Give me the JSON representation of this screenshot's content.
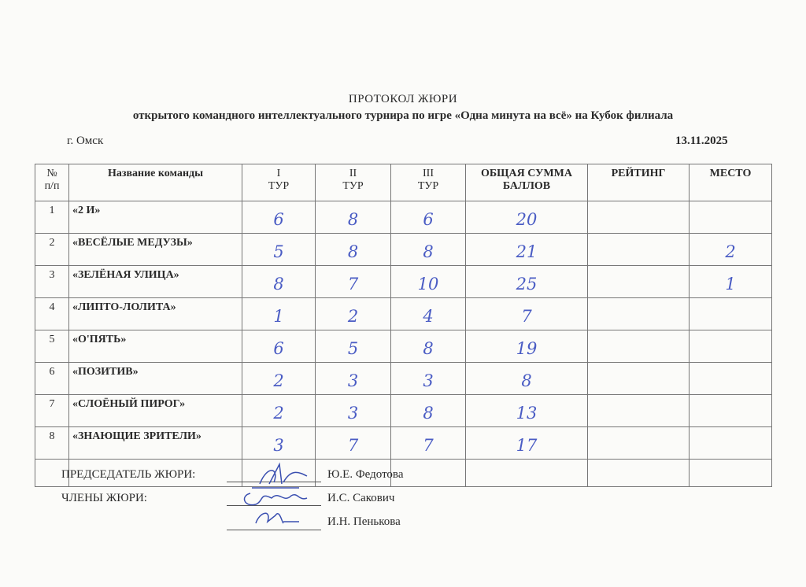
{
  "header": {
    "title": "ПРОТОКОЛ  ЖЮРИ",
    "subtitle": "открытого командного интеллектуального турнира по игре «Одна минута на всё» на Кубок филиала",
    "city": "г. Омск",
    "date": "13.11.2025"
  },
  "table": {
    "columns": [
      {
        "line1": "№",
        "line2": "п/п"
      },
      {
        "line1": "Название команды",
        "line2": ""
      },
      {
        "line1": "I",
        "line2": "ТУР"
      },
      {
        "line1": "II",
        "line2": "ТУР"
      },
      {
        "line1": "III",
        "line2": "ТУР"
      },
      {
        "line1": "ОБЩАЯ СУММА",
        "line2": "БАЛЛОВ"
      },
      {
        "line1": "РЕЙТИНГ",
        "line2": ""
      },
      {
        "line1": "МЕСТО",
        "line2": ""
      }
    ],
    "rows": [
      {
        "n": "1",
        "team": "«2 И»",
        "t1": "6",
        "t2": "8",
        "t3": "6",
        "total": "20",
        "rating": "",
        "place": ""
      },
      {
        "n": "2",
        "team": "«ВЕСЁЛЫЕ МЕДУЗЫ»",
        "t1": "5",
        "t2": "8",
        "t3": "8",
        "total": "21",
        "rating": "",
        "place": "2"
      },
      {
        "n": "3",
        "team": "«ЗЕЛЁНАЯ УЛИЦА»",
        "t1": "8",
        "t2": "7",
        "t3": "10",
        "total": "25",
        "rating": "",
        "place": "1"
      },
      {
        "n": "4",
        "team": "«ЛИПТО-ЛОЛИТА»",
        "t1": "1",
        "t2": "2",
        "t3": "4",
        "total": "7",
        "rating": "",
        "place": ""
      },
      {
        "n": "5",
        "team": "«О'ПЯТЬ»",
        "t1": "6",
        "t2": "5",
        "t3": "8",
        "total": "19",
        "rating": "",
        "place": ""
      },
      {
        "n": "6",
        "team": "«ПОЗИТИВ»",
        "t1": "2",
        "t2": "3",
        "t3": "3",
        "total": "8",
        "rating": "",
        "place": ""
      },
      {
        "n": "7",
        "team": "«СЛОЁНЫЙ ПИРОГ»",
        "t1": "2",
        "t2": "3",
        "t3": "8",
        "total": "13",
        "rating": "",
        "place": ""
      },
      {
        "n": "8",
        "team": "«ЗНАЮЩИЕ ЗРИТЕЛИ»",
        "t1": "3",
        "t2": "7",
        "t3": "7",
        "total": "17",
        "rating": "",
        "place": ""
      }
    ]
  },
  "jury": {
    "chair_label": "ПРЕДСЕДАТЕЛЬ ЖЮРИ:",
    "members_label": "ЧЛЕНЫ ЖЮРИ:",
    "chair_name": "Ю.Е. Федотова",
    "member1_name": "И.С. Сакович",
    "member2_name": "И.Н. Пенькова"
  },
  "colors": {
    "ink": "#4a5cc4",
    "paper": "#fbfbf9"
  }
}
